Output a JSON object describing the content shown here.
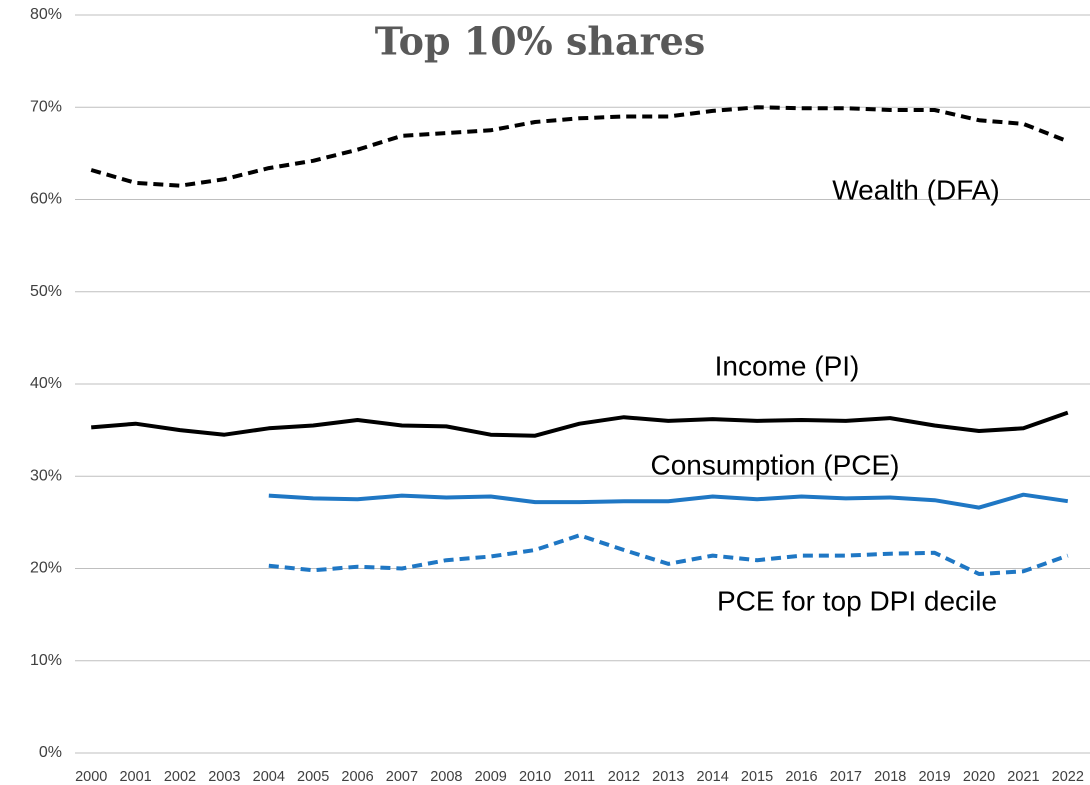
{
  "chart_data": {
    "type": "line",
    "title": "Top 10% shares",
    "categories": [
      "2000",
      "2001",
      "2002",
      "2003",
      "2004",
      "2005",
      "2006",
      "2007",
      "2008",
      "2009",
      "2010",
      "2011",
      "2012",
      "2013",
      "2014",
      "2015",
      "2016",
      "2017",
      "2018",
      "2019",
      "2020",
      "2021",
      "2022"
    ],
    "series": [
      {
        "name": "Wealth (DFA)",
        "color": "#000000",
        "dashed": true,
        "values": [
          63.2,
          61.8,
          61.5,
          62.2,
          63.4,
          64.2,
          65.4,
          66.9,
          67.2,
          67.5,
          68.4,
          68.8,
          69.0,
          69.0,
          69.6,
          70.0,
          69.9,
          69.9,
          69.7,
          69.7,
          68.6,
          68.2,
          66.3
        ]
      },
      {
        "name": "Income (PI)",
        "color": "#000000",
        "dashed": false,
        "values": [
          35.3,
          35.7,
          35.0,
          34.5,
          35.2,
          35.5,
          36.1,
          35.5,
          35.4,
          34.5,
          34.4,
          35.7,
          36.4,
          36.0,
          36.2,
          36.0,
          36.1,
          36.0,
          36.3,
          35.5,
          34.9,
          35.2,
          36.9
        ]
      },
      {
        "name": "Consumption (PCE)",
        "color": "#1f77c4",
        "dashed": false,
        "values": [
          null,
          null,
          null,
          null,
          27.9,
          27.6,
          27.5,
          27.9,
          27.7,
          27.8,
          27.2,
          27.2,
          27.3,
          27.3,
          27.8,
          27.5,
          27.8,
          27.6,
          27.7,
          27.4,
          26.6,
          28.0,
          27.3
        ]
      },
      {
        "name": "PCE for top DPI decile",
        "color": "#1f77c4",
        "dashed": true,
        "values": [
          null,
          null,
          null,
          null,
          20.3,
          19.8,
          20.2,
          20.0,
          20.9,
          21.3,
          22.0,
          23.6,
          22.0,
          20.5,
          21.4,
          20.9,
          21.4,
          21.4,
          21.6,
          21.7,
          19.4,
          19.7,
          21.4
        ]
      }
    ],
    "ylim": [
      0,
      80
    ],
    "yticks": [
      {
        "value": 0,
        "label": "0%"
      },
      {
        "value": 10,
        "label": "10%"
      },
      {
        "value": 20,
        "label": "20%"
      },
      {
        "value": 30,
        "label": "30%"
      },
      {
        "value": 40,
        "label": "40%"
      },
      {
        "value": 50,
        "label": "50%"
      },
      {
        "value": 60,
        "label": "60%"
      },
      {
        "value": 70,
        "label": "70%"
      },
      {
        "value": 80,
        "label": "80%"
      }
    ],
    "grid": true
  }
}
